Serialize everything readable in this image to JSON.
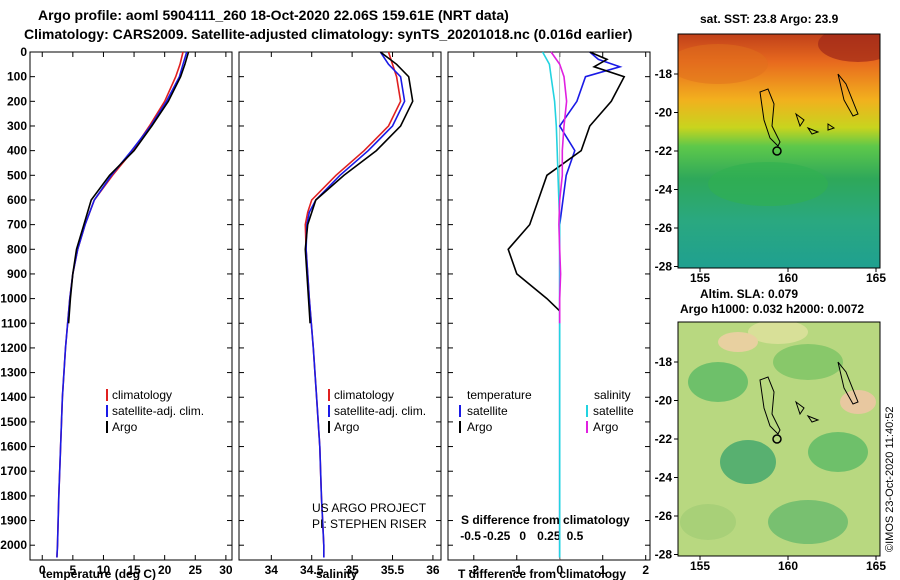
{
  "header": {
    "line1": "Argo profile: aoml 5904111_260 18-Oct-2020 22.06S 159.61E (NRT data)",
    "line2": "Climatology: CARS2009. Satellite-adjusted climatology: synTS_20201018.nc (0.016d earlier)"
  },
  "colors": {
    "climatology": "#e02020",
    "satellite": "#1a1ae6",
    "argo": "#000000",
    "sal_satellite": "#22d3e0",
    "sal_argo": "#e020e0"
  },
  "chart_data": [
    {
      "type": "line",
      "xlabel": "temperature (deg C)",
      "ylabel": "",
      "xlim": [
        -2,
        31
      ],
      "ylim": [
        2060,
        0
      ],
      "xticks": [
        0,
        5,
        10,
        15,
        20,
        25,
        30
      ],
      "yticks": [
        0,
        100,
        200,
        300,
        400,
        500,
        600,
        700,
        800,
        900,
        1000,
        1100,
        1200,
        1300,
        1400,
        1500,
        1600,
        1700,
        1800,
        1900,
        2000
      ],
      "legend": [
        "climatology",
        "satellite-adj. clim.",
        "Argo"
      ],
      "series": [
        {
          "name": "climatology",
          "depth": [
            0,
            50,
            100,
            200,
            300,
            400,
            500,
            600,
            700,
            800,
            900,
            1000,
            1200,
            1400,
            1600,
            1800,
            2000,
            2050
          ],
          "values": [
            23.0,
            22.5,
            21.8,
            20.0,
            17.5,
            14.8,
            11.5,
            8.5,
            7.0,
            5.8,
            5.0,
            4.5,
            3.8,
            3.3,
            3.0,
            2.7,
            2.5,
            2.4
          ]
        },
        {
          "name": "satellite-adj. clim.",
          "depth": [
            0,
            50,
            100,
            200,
            300,
            400,
            500,
            600,
            700,
            800,
            900,
            1000,
            1200,
            1400,
            1600,
            1800,
            2000,
            2050
          ],
          "values": [
            23.6,
            23.0,
            22.4,
            20.3,
            17.7,
            14.6,
            11.3,
            8.5,
            7.0,
            5.8,
            5.0,
            4.5,
            3.8,
            3.3,
            3.0,
            2.7,
            2.5,
            2.4
          ]
        },
        {
          "name": "Argo",
          "depth": [
            0,
            50,
            100,
            200,
            300,
            400,
            500,
            600,
            700,
            800,
            900,
            1000,
            1100
          ],
          "values": [
            23.9,
            23.3,
            22.6,
            20.6,
            17.9,
            15.0,
            11.0,
            8.0,
            6.8,
            5.6,
            5.0,
            4.6,
            4.3
          ]
        }
      ]
    },
    {
      "type": "line",
      "xlabel": "salinity",
      "xlim": [
        33.6,
        36.1
      ],
      "ylim": [
        2060,
        0
      ],
      "xticks": [
        34,
        34.5,
        35,
        35.5,
        36
      ],
      "legend": [
        "climatology",
        "satellite-adj. clim.",
        "Argo"
      ],
      "series": [
        {
          "name": "climatology",
          "depth": [
            0,
            50,
            100,
            200,
            300,
            400,
            500,
            600,
            650,
            700,
            800,
            900,
            1000,
            1200,
            1400,
            1600,
            1800,
            2000,
            2050
          ],
          "values": [
            35.45,
            35.5,
            35.55,
            35.6,
            35.45,
            35.15,
            34.8,
            34.5,
            34.45,
            34.42,
            34.43,
            34.45,
            34.47,
            34.52,
            34.56,
            34.6,
            34.62,
            34.65,
            34.65
          ]
        },
        {
          "name": "satellite-adj. clim.",
          "depth": [
            0,
            50,
            100,
            200,
            300,
            400,
            500,
            600,
            650,
            700,
            800,
            900,
            1000,
            1200,
            1400,
            1600,
            1800,
            2000,
            2050
          ],
          "values": [
            35.35,
            35.45,
            35.6,
            35.65,
            35.5,
            35.2,
            34.85,
            34.55,
            34.47,
            34.44,
            34.43,
            34.45,
            34.47,
            34.52,
            34.56,
            34.6,
            34.62,
            34.65,
            34.65
          ]
        },
        {
          "name": "Argo",
          "depth": [
            0,
            50,
            100,
            200,
            300,
            400,
            500,
            600,
            700,
            800,
            900,
            1000,
            1100
          ],
          "values": [
            35.35,
            35.55,
            35.7,
            35.75,
            35.6,
            35.3,
            34.9,
            34.55,
            34.45,
            34.42,
            34.44,
            34.46,
            34.48
          ]
        }
      ],
      "annotations": [
        "US ARGO PROJECT",
        "PI: STEPHEN RISER"
      ]
    },
    {
      "type": "line",
      "xlabel": "T difference from climatology",
      "xlabel_top": "S difference from climatology",
      "xlim": [
        -2.6,
        2.1
      ],
      "ylim": [
        2060,
        0
      ],
      "xticks": [
        -2,
        -1,
        0,
        1,
        2
      ],
      "xticks_top": [
        "-0.5",
        "-0.25",
        "0",
        "0.25",
        "0.5"
      ],
      "legend_left_title": "temperature",
      "legend_right_title": "salinity",
      "legend": [
        "satellite",
        "Argo",
        "satellite",
        "Argo"
      ],
      "series": [
        {
          "name": "T satellite",
          "depth": [
            0,
            30,
            60,
            100,
            200,
            300,
            400,
            500,
            700,
            900,
            1100,
            1400,
            2050
          ],
          "values": [
            0.7,
            0.9,
            1.4,
            0.6,
            0.4,
            0.0,
            0.35,
            0.15,
            0.0,
            0.0,
            0.0,
            0.0,
            0.0
          ]
        },
        {
          "name": "T Argo",
          "depth": [
            0,
            30,
            60,
            100,
            200,
            300,
            400,
            500,
            600,
            700,
            800,
            900,
            1000,
            1050
          ],
          "values": [
            0.7,
            1.1,
            0.8,
            1.5,
            1.2,
            0.7,
            0.5,
            -0.3,
            -0.5,
            -0.7,
            -1.2,
            -1.0,
            -0.3,
            0.0
          ]
        },
        {
          "name": "S satellite",
          "depth": [
            0,
            50,
            100,
            200,
            300,
            400,
            500,
            700,
            1000,
            2050
          ],
          "values": [
            -0.2,
            -0.12,
            -0.1,
            -0.06,
            -0.04,
            -0.03,
            -0.02,
            0.0,
            0.0,
            0.0
          ]
        },
        {
          "name": "S Argo",
          "depth": [
            0,
            50,
            100,
            200,
            300,
            400,
            500,
            600,
            700,
            800,
            900,
            1000,
            1100
          ],
          "values": [
            -0.1,
            0.0,
            0.05,
            0.08,
            0.05,
            0.03,
            0.03,
            0.0,
            -0.01,
            0.0,
            0.01,
            0.0,
            0.0
          ]
        }
      ]
    }
  ],
  "maps": {
    "sst_title": "sat. SST: 23.8 Argo: 23.9",
    "sla_title1": "Altim. SLA: 0.079",
    "sla_title2": "Argo h1000: 0.032 h2000: 0.0072",
    "yticks": [
      "-18",
      "-20",
      "-22",
      "-24",
      "-26",
      "-28"
    ],
    "xticks": [
      "155",
      "160",
      "165"
    ]
  },
  "credit": "©IMOS 23-Oct-2020 11:40:52"
}
